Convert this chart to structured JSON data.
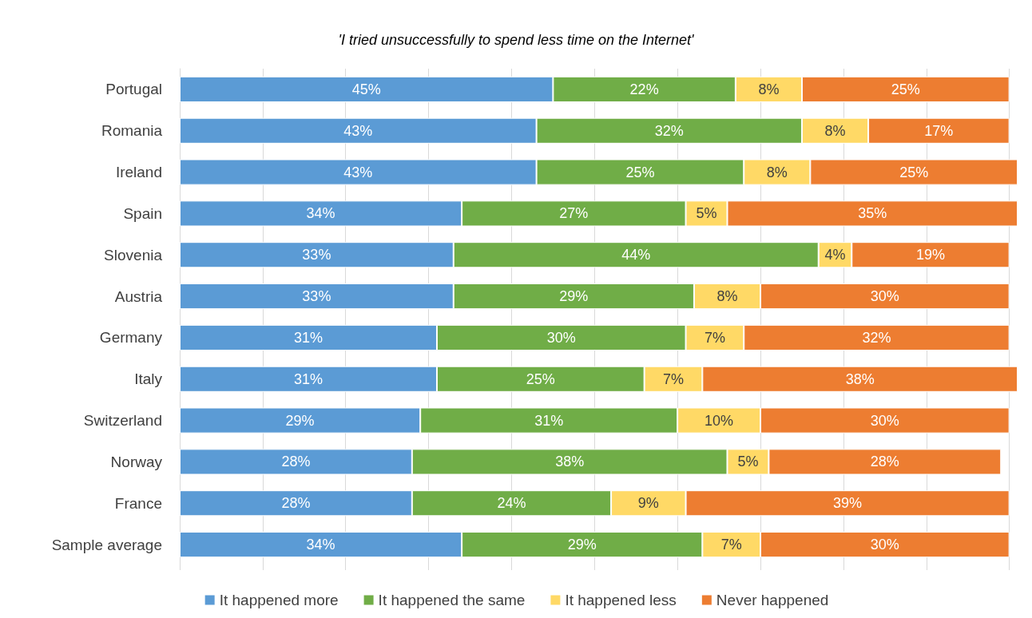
{
  "chart_data": {
    "type": "bar",
    "orientation": "horizontal",
    "stacked": true,
    "title": "'I tried unsuccessfully to spend less time on the Internet'",
    "categories": [
      "Portugal",
      "Romania",
      "Ireland",
      "Spain",
      "Slovenia",
      "Austria",
      "Germany",
      "Italy",
      "Switzerland",
      "Norway",
      "France",
      "Sample average"
    ],
    "series": [
      {
        "name": "It happened more",
        "color": "#5b9bd5",
        "values": [
          45,
          43,
          43,
          34,
          33,
          33,
          31,
          31,
          29,
          28,
          28,
          34
        ],
        "value_labels": [
          "45%",
          "43%",
          "43%",
          "34%",
          "33%",
          "33%",
          "31%",
          "31%",
          "29%",
          "28%",
          "28%",
          "34%"
        ]
      },
      {
        "name": "It happened the same",
        "color": "#70ad47",
        "values": [
          22,
          32,
          25,
          27,
          44,
          29,
          30,
          25,
          31,
          38,
          24,
          29
        ],
        "value_labels": [
          "22%",
          "32%",
          "25%",
          "27%",
          "44%",
          "29%",
          "30%",
          "25%",
          "31%",
          "38%",
          "24%",
          "29%"
        ]
      },
      {
        "name": "It happened less",
        "color": "#ffd966",
        "values": [
          8,
          8,
          8,
          5,
          4,
          8,
          7,
          7,
          10,
          5,
          9,
          7
        ],
        "value_labels": [
          "8%",
          "8%",
          "8%",
          "5%",
          "4%",
          "8%",
          "7%",
          "7%",
          "10%",
          "5%",
          "9%",
          "7%"
        ]
      },
      {
        "name": "Never happened",
        "color": "#ed7d31",
        "values": [
          25,
          17,
          25,
          35,
          19,
          30,
          32,
          38,
          30,
          28,
          39,
          30
        ],
        "value_labels": [
          "25%",
          "17%",
          "25%",
          "35%",
          "19%",
          "30%",
          "32%",
          "38%",
          "30%",
          "28%",
          "39%",
          "30%"
        ]
      }
    ],
    "xlim": [
      0,
      101
    ],
    "xticks": [
      {
        "value": 0,
        "label": null
      },
      {
        "value": 10,
        "label": null
      },
      {
        "value": 20,
        "label": null
      },
      {
        "value": 30,
        "label": null
      },
      {
        "value": 40,
        "label": null
      },
      {
        "value": 50,
        "label": null
      },
      {
        "value": 60,
        "label": null
      },
      {
        "value": 70,
        "label": null
      },
      {
        "value": 80,
        "label": null
      },
      {
        "value": 90,
        "label": null
      },
      {
        "value": 100,
        "label": null
      }
    ],
    "grid": "x",
    "legend": "bottom",
    "tick_labels": "y"
  }
}
